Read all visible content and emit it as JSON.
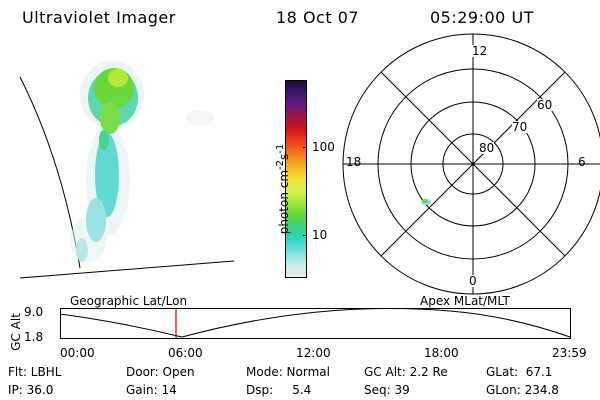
{
  "header": {
    "instrument": "Ultraviolet Imager",
    "date": "18 Oct 07",
    "time": "05:29:00 UT"
  },
  "colorbar": {
    "label_html": "photon cm<sup>-2</sup>s<sup>-1</sup>",
    "label_plain": "photon cm-2s-1",
    "ticks": [
      "100",
      "10"
    ],
    "colors": [
      "#1e0a32",
      "#3a1670",
      "#6a1b7e",
      "#a01540",
      "#d01818",
      "#f0401c",
      "#f47c1f",
      "#f7b324",
      "#f4e235",
      "#d6f050",
      "#9fe63a",
      "#5fd63a",
      "#35d08a",
      "#30d6c8",
      "#7fe0e0",
      "#c6ecea",
      "#e8f4f2"
    ]
  },
  "polar_plot": {
    "mlt_labels": [
      "12",
      "18",
      "6",
      "0"
    ],
    "lat_labels": [
      "60",
      "70",
      "80"
    ]
  },
  "timeline": {
    "left_title": "Geographic Lat/Lon",
    "right_title": "Apex MLat/MLT",
    "y_axis_label": "GC Alt",
    "y_ticks": [
      "9.0",
      "1.8"
    ],
    "x_ticks": [
      "00:00",
      "06:00",
      "12:00",
      "18:00",
      "23:59"
    ],
    "marker_time": "05:29",
    "marker_color": "#cc0000"
  },
  "info": {
    "row1": {
      "filter": "Flt: LBHL",
      "door": "Door: Open",
      "mode": "Mode: Normal",
      "gc_alt": "GC Alt: 2.2 Re",
      "glat": "GLat:  67.1"
    },
    "row2": {
      "ip": "IP: 36.0",
      "gain": "Gain: 14",
      "dsp": "Dsp:     5.4",
      "seq": "Seq: 39",
      "glon": "GLon: 234.8"
    }
  }
}
